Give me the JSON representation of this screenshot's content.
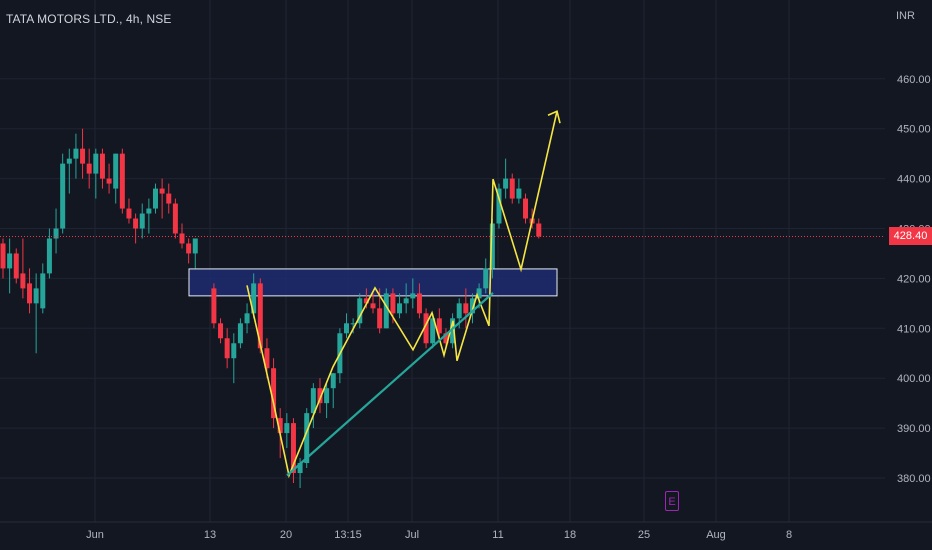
{
  "header": {
    "title": "TATA MOTORS LTD., 4h, NSE",
    "currency": "INR"
  },
  "last_price": "428.40",
  "earnings_badge": "E",
  "colors": {
    "up": "#26a69a",
    "down": "#f23645",
    "pattern_line": "#f5e642",
    "trendline": "#26a69a",
    "zone_fill": "#1e2b6e",
    "zone_border": "#e8ecf5",
    "bg": "#131722"
  },
  "chart_data": {
    "type": "candlestick",
    "title": "TATA MOTORS LTD., 4h, NSE",
    "y_unit": "INR",
    "ylim": [
      375,
      470
    ],
    "y_ticks": [
      "460.00",
      "450.00",
      "440.00",
      "430.00",
      "420.00",
      "410.00",
      "400.00",
      "390.00",
      "380.00"
    ],
    "x_ticks": [
      "Jun",
      "13",
      "20",
      "13:15",
      "Jul",
      "11",
      "18",
      "25",
      "Aug",
      "8"
    ],
    "last_price": 428.4,
    "candles": [
      {
        "o": 427,
        "h": 428,
        "l": 420,
        "c": 422
      },
      {
        "o": 422,
        "h": 428,
        "l": 417,
        "c": 425
      },
      {
        "o": 425,
        "h": 426,
        "l": 419,
        "c": 420
      },
      {
        "o": 421,
        "h": 428,
        "l": 416,
        "c": 418
      },
      {
        "o": 419,
        "h": 422,
        "l": 413,
        "c": 415
      },
      {
        "o": 415,
        "h": 421,
        "l": 405,
        "c": 418
      },
      {
        "o": 414,
        "h": 423,
        "l": 413,
        "c": 421
      },
      {
        "o": 421,
        "h": 430,
        "l": 420,
        "c": 428
      },
      {
        "o": 428,
        "h": 434,
        "l": 425,
        "c": 430
      },
      {
        "o": 430,
        "h": 445,
        "l": 429,
        "c": 443
      },
      {
        "o": 443,
        "h": 446,
        "l": 437,
        "c": 444
      },
      {
        "o": 444,
        "h": 449,
        "l": 440,
        "c": 446
      },
      {
        "o": 446,
        "h": 450,
        "l": 440,
        "c": 443
      },
      {
        "o": 443,
        "h": 446,
        "l": 438,
        "c": 441
      },
      {
        "o": 441,
        "h": 446,
        "l": 436,
        "c": 445
      },
      {
        "o": 445,
        "h": 446,
        "l": 438,
        "c": 440
      },
      {
        "o": 440,
        "h": 443,
        "l": 437,
        "c": 439
      },
      {
        "o": 438,
        "h": 445,
        "l": 435,
        "c": 445
      },
      {
        "o": 445,
        "h": 446,
        "l": 433,
        "c": 434
      },
      {
        "o": 434,
        "h": 436,
        "l": 431,
        "c": 432
      },
      {
        "o": 432,
        "h": 433,
        "l": 427,
        "c": 430
      },
      {
        "o": 430,
        "h": 435,
        "l": 428,
        "c": 433
      },
      {
        "o": 433,
        "h": 436,
        "l": 429,
        "c": 434
      },
      {
        "o": 434,
        "h": 439,
        "l": 433,
        "c": 438
      },
      {
        "o": 438,
        "h": 440,
        "l": 432,
        "c": 437
      },
      {
        "o": 437,
        "h": 439,
        "l": 433,
        "c": 435
      },
      {
        "o": 435,
        "h": 436,
        "l": 428,
        "c": 429
      },
      {
        "o": 429,
        "h": 431,
        "l": 426,
        "c": 427
      },
      {
        "o": 427,
        "h": 428,
        "l": 423,
        "c": 425
      },
      {
        "o": 425,
        "h": 428,
        "l": 422,
        "c": 428
      },
      {
        "o": 418,
        "h": 419,
        "l": 410,
        "c": 411
      },
      {
        "o": 411,
        "h": 412,
        "l": 407,
        "c": 408
      },
      {
        "o": 408,
        "h": 410,
        "l": 402,
        "c": 404
      },
      {
        "o": 404,
        "h": 409,
        "l": 399,
        "c": 407
      },
      {
        "o": 407,
        "h": 412,
        "l": 406,
        "c": 411
      },
      {
        "o": 411,
        "h": 415,
        "l": 409,
        "c": 413
      },
      {
        "o": 413,
        "h": 421,
        "l": 412,
        "c": 419
      },
      {
        "o": 419,
        "h": 420,
        "l": 405,
        "c": 406
      },
      {
        "o": 406,
        "h": 408,
        "l": 400,
        "c": 402
      },
      {
        "o": 402,
        "h": 404,
        "l": 390,
        "c": 392
      },
      {
        "o": 392,
        "h": 394,
        "l": 384,
        "c": 389
      },
      {
        "o": 389,
        "h": 393,
        "l": 386,
        "c": 391
      },
      {
        "o": 391,
        "h": 392,
        "l": 379,
        "c": 381
      },
      {
        "o": 381,
        "h": 384,
        "l": 378,
        "c": 383
      },
      {
        "o": 383,
        "h": 394,
        "l": 382,
        "c": 393
      },
      {
        "o": 393,
        "h": 399,
        "l": 390,
        "c": 398
      },
      {
        "o": 398,
        "h": 400,
        "l": 393,
        "c": 395
      },
      {
        "o": 395,
        "h": 399,
        "l": 392,
        "c": 398
      },
      {
        "o": 398,
        "h": 401,
        "l": 394,
        "c": 401
      },
      {
        "o": 401,
        "h": 410,
        "l": 399,
        "c": 409
      },
      {
        "o": 409,
        "h": 413,
        "l": 408,
        "c": 411
      },
      {
        "o": 411,
        "h": 412,
        "l": 409,
        "c": 411
      },
      {
        "o": 411,
        "h": 417,
        "l": 410,
        "c": 416
      },
      {
        "o": 416,
        "h": 418,
        "l": 414,
        "c": 415
      },
      {
        "o": 415,
        "h": 417,
        "l": 413,
        "c": 414
      },
      {
        "o": 414,
        "h": 418,
        "l": 409,
        "c": 410
      },
      {
        "o": 410,
        "h": 418,
        "l": 410,
        "c": 417
      },
      {
        "o": 417,
        "h": 418,
        "l": 411,
        "c": 413
      },
      {
        "o": 413,
        "h": 417,
        "l": 412,
        "c": 415
      },
      {
        "o": 415,
        "h": 419,
        "l": 413,
        "c": 416
      },
      {
        "o": 416,
        "h": 420,
        "l": 414,
        "c": 417
      },
      {
        "o": 417,
        "h": 419,
        "l": 412,
        "c": 413
      },
      {
        "o": 413,
        "h": 414,
        "l": 406,
        "c": 407
      },
      {
        "o": 407,
        "h": 413,
        "l": 406,
        "c": 412
      },
      {
        "o": 412,
        "h": 414,
        "l": 408,
        "c": 409
      },
      {
        "o": 409,
        "h": 410,
        "l": 406,
        "c": 407
      },
      {
        "o": 407,
        "h": 413,
        "l": 406,
        "c": 412
      },
      {
        "o": 412,
        "h": 416,
        "l": 410,
        "c": 415
      },
      {
        "o": 415,
        "h": 418,
        "l": 410,
        "c": 413
      },
      {
        "o": 413,
        "h": 417,
        "l": 411,
        "c": 416
      },
      {
        "o": 416,
        "h": 419,
        "l": 414,
        "c": 418
      },
      {
        "o": 418,
        "h": 424,
        "l": 417,
        "c": 422
      },
      {
        "o": 422,
        "h": 432,
        "l": 420,
        "c": 431
      },
      {
        "o": 431,
        "h": 439,
        "l": 430,
        "c": 438
      },
      {
        "o": 438,
        "h": 444,
        "l": 436,
        "c": 440
      },
      {
        "o": 440,
        "h": 441,
        "l": 435,
        "c": 436
      },
      {
        "o": 436,
        "h": 440,
        "l": 435,
        "c": 438
      },
      {
        "o": 436,
        "h": 437,
        "l": 431,
        "c": 432
      },
      {
        "o": 432,
        "h": 434,
        "l": 430,
        "c": 431
      },
      {
        "o": 431,
        "h": 432,
        "l": 428,
        "c": 428.4
      }
    ],
    "drawings": {
      "demand_zone": {
        "y_low": 416.5,
        "y_high": 421.9
      },
      "pattern_polyline": [
        [
          418.6
        ],
        [
          395.5
        ],
        [
          380.5
        ],
        [
          402.3
        ],
        [
          418.1
        ],
        [
          405.7
        ],
        [
          413.1
        ],
        [
          404.6
        ],
        [
          411.5
        ],
        [
          403.5
        ],
        [
          416.7
        ],
        [
          410.5
        ],
        [
          439.9
        ],
        [
          421.8
        ],
        [
          453.5
        ]
      ],
      "trendline": [
        380.5,
        417.1
      ]
    }
  }
}
